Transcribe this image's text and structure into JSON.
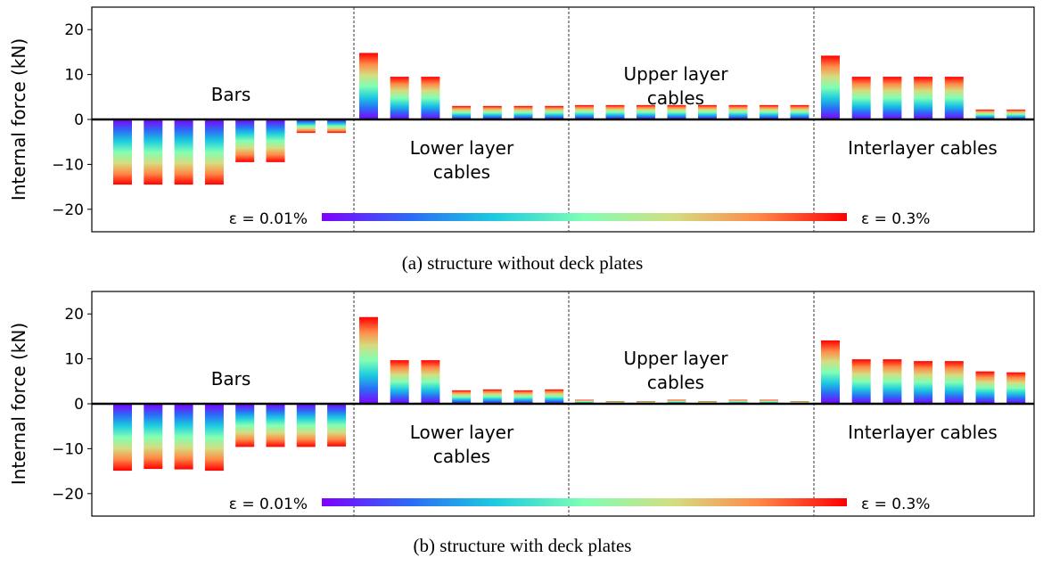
{
  "chart_data": [
    {
      "type": "bar",
      "ylabel": "Internal force (kN)",
      "ylim": [
        -25,
        25
      ],
      "yticks": [
        -20,
        -10,
        0,
        10,
        20
      ],
      "caption": "(a) structure without deck plates",
      "groups": [
        {
          "name": "Bars",
          "values": [
            -14.5,
            -14.5,
            -14.5,
            -14.5,
            -9.5,
            -9.5,
            -3.0,
            -3.0
          ]
        },
        {
          "name": "Lower layer cables",
          "values": [
            14.8,
            9.5,
            9.5,
            3.0,
            3.0,
            3.0,
            3.0
          ]
        },
        {
          "name": "Upper layer cables",
          "values": [
            3.2,
            3.2,
            3.2,
            3.2,
            3.2,
            3.2,
            3.2,
            3.2
          ]
        },
        {
          "name": "Interlayer cables",
          "values": [
            14.2,
            9.5,
            9.5,
            9.5,
            9.5,
            2.2,
            2.2
          ]
        }
      ],
      "group_labels": [
        {
          "text": "Bars",
          "lines": [
            "Bars"
          ]
        },
        {
          "text": "Lower layer cables",
          "lines": [
            "Lower layer",
            "cables"
          ]
        },
        {
          "text": "Upper layer cables",
          "lines": [
            "Upper layer",
            "cables"
          ]
        },
        {
          "text": "Interlayer cables",
          "lines": [
            "Interlayer cables"
          ]
        }
      ],
      "colorbar": {
        "min_label": "ε = 0.01%",
        "max_label": "ε = 0.3%",
        "colormap": "rainbow"
      },
      "grid": false
    },
    {
      "type": "bar",
      "ylabel": "Internal force (kN)",
      "ylim": [
        -25,
        25
      ],
      "yticks": [
        -20,
        -10,
        0,
        10,
        20
      ],
      "caption": "(b) structure with deck plates",
      "groups": [
        {
          "name": "Bars",
          "values": [
            -14.9,
            -14.5,
            -14.6,
            -14.9,
            -9.6,
            -9.6,
            -9.6,
            -9.5
          ]
        },
        {
          "name": "Lower layer cables",
          "values": [
            19.3,
            9.7,
            9.7,
            3.0,
            3.2,
            3.0,
            3.2
          ]
        },
        {
          "name": "Upper layer cables",
          "values": [
            0.9,
            0.6,
            0.6,
            0.9,
            0.6,
            0.9,
            0.9,
            0.6
          ]
        },
        {
          "name": "Interlayer cables",
          "values": [
            14.1,
            9.9,
            9.9,
            9.5,
            9.5,
            7.2,
            7.0
          ]
        }
      ],
      "group_labels": [
        {
          "text": "Bars",
          "lines": [
            "Bars"
          ]
        },
        {
          "text": "Lower layer cables",
          "lines": [
            "Lower layer",
            "cables"
          ]
        },
        {
          "text": "Upper layer cables",
          "lines": [
            "Upper layer",
            "cables"
          ]
        },
        {
          "text": "Interlayer cables",
          "lines": [
            "Interlayer cables"
          ]
        }
      ],
      "colorbar": {
        "min_label": "ε = 0.01%",
        "max_label": "ε = 0.3%",
        "colormap": "rainbow"
      },
      "grid": false
    }
  ]
}
